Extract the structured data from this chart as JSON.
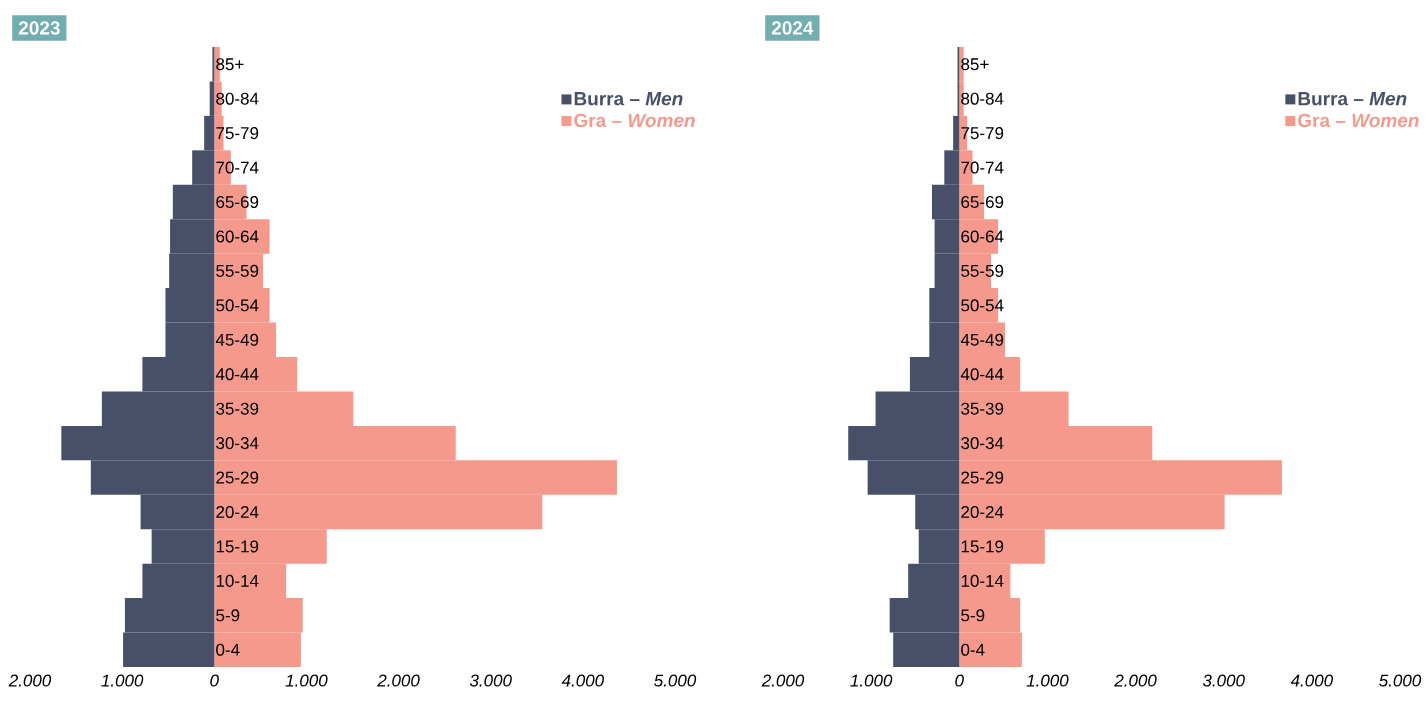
{
  "chart_data": [
    {
      "type": "bar",
      "orientation": "horizontal",
      "title": "2023",
      "stacked": true,
      "categories": [
        "85+",
        "80-84",
        "75-79",
        "70-74",
        "65-69",
        "60-64",
        "55-59",
        "50-54",
        "45-49",
        "40-44",
        "35-39",
        "30-34",
        "25-29",
        "20-24",
        "15-19",
        "10-14",
        "5-9",
        "0-4"
      ],
      "series": [
        {
          "name": "Burra – *Men*",
          "color": "#475068",
          "values": [
            -20,
            -50,
            -110,
            -240,
            -450,
            -480,
            -490,
            -530,
            -530,
            -780,
            -1220,
            -1660,
            -1340,
            -800,
            -680,
            -780,
            -970,
            -990
          ]
        },
        {
          "name": "Gra – *Women*",
          "color": "#f4998b",
          "values": [
            60,
            80,
            100,
            180,
            350,
            600,
            530,
            600,
            670,
            900,
            1510,
            2620,
            4370,
            3560,
            1220,
            780,
            960,
            940
          ]
        }
      ],
      "xlim": [
        -2000,
        5000
      ],
      "xticks": [
        {
          "value": -2000,
          "label": "2.000"
        },
        {
          "value": -1000,
          "label": "1.000"
        },
        0,
        {
          "value": 1000,
          "label": "1.000"
        },
        {
          "value": 2000,
          "label": "2.000"
        },
        {
          "value": 3000,
          "label": "3.000"
        },
        {
          "value": 4000,
          "label": "4.000"
        },
        {
          "value": 5000,
          "label": "5.000"
        }
      ],
      "legend": "top right"
    },
    {
      "type": "bar",
      "orientation": "horizontal",
      "title": "2024",
      "stacked": true,
      "categories": [
        "85+",
        "80-84",
        "75-79",
        "70-74",
        "65-69",
        "60-64",
        "55-59",
        "50-54",
        "45-49",
        "40-44",
        "35-39",
        "30-34",
        "25-29",
        "20-24",
        "15-19",
        "10-14",
        "5-9",
        "0-4"
      ],
      "series": [
        {
          "name": "Burra – *Men*",
          "color": "#475068",
          "values": [
            -20,
            -20,
            -70,
            -170,
            -310,
            -280,
            -280,
            -340,
            -340,
            -560,
            -950,
            -1260,
            -1040,
            -500,
            -460,
            -580,
            -790,
            -750
          ]
        },
        {
          "name": "Gra – *Women*",
          "color": "#f4998b",
          "values": [
            50,
            50,
            90,
            150,
            280,
            440,
            360,
            440,
            520,
            690,
            1240,
            2190,
            3660,
            3010,
            970,
            580,
            690,
            710
          ]
        }
      ],
      "xlim": [
        -2000,
        5000
      ],
      "xticks": [
        {
          "value": -2000,
          "label": "2.000"
        },
        {
          "value": -1000,
          "label": "1.000"
        },
        0,
        {
          "value": 1000,
          "label": "1.000"
        },
        {
          "value": 2000,
          "label": "2.000"
        },
        {
          "value": 3000,
          "label": "3.000"
        },
        {
          "value": 4000,
          "label": "4.000"
        },
        {
          "value": 5000,
          "label": "5.000"
        }
      ],
      "legend": "top right"
    }
  ]
}
